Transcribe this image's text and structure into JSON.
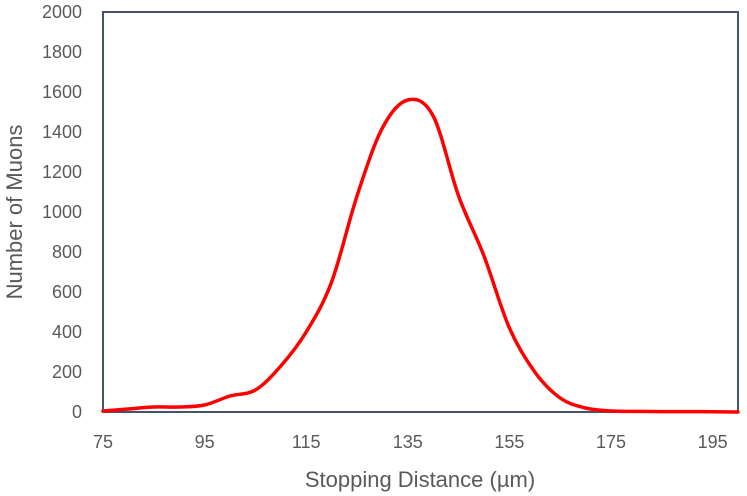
{
  "chart_data": {
    "type": "line",
    "title": "",
    "xlabel": "Stopping Distance (µm)",
    "ylabel": "Number of Muons",
    "xlim": [
      75,
      200
    ],
    "ylim": [
      0,
      2000
    ],
    "x_ticks": [
      75,
      95,
      115,
      135,
      155,
      175,
      195
    ],
    "y_ticks": [
      0,
      200,
      400,
      600,
      800,
      1000,
      1200,
      1400,
      1600,
      1800,
      2000
    ],
    "grid": false,
    "legend": "none",
    "series": [
      {
        "color": "#ff0000",
        "x": [
          75,
          80,
          85,
          90,
          95,
          100,
          105,
          110,
          115,
          120,
          125,
          130,
          135,
          140,
          145,
          150,
          155,
          160,
          165,
          170,
          175,
          180,
          185,
          190,
          195,
          200
        ],
        "y": [
          5,
          15,
          25,
          25,
          35,
          80,
          110,
          230,
          400,
          650,
          1080,
          1420,
          1560,
          1480,
          1080,
          780,
          420,
          200,
          70,
          20,
          5,
          3,
          2,
          2,
          1,
          0
        ]
      }
    ]
  }
}
